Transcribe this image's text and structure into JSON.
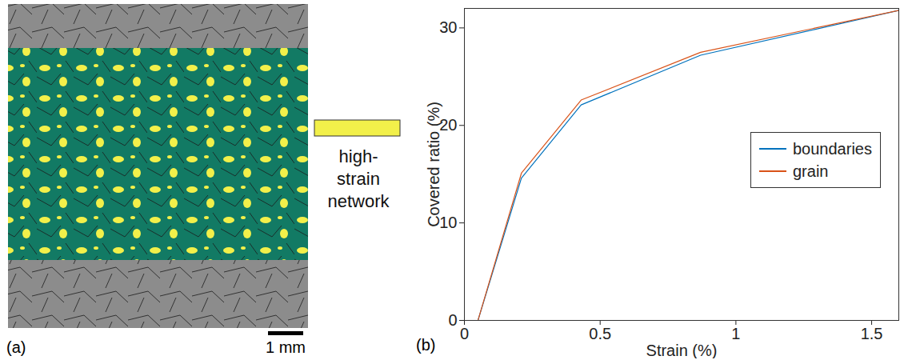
{
  "panel_a": {
    "panel_label": "(a)",
    "legend_label": "high-strain network",
    "scale_bar": "1 mm"
  },
  "chart_data": {
    "type": "line",
    "panel_label": "(b)",
    "x_label": "Strain (%)",
    "y_label": "Covered ratio (%)",
    "series": [
      {
        "name": "boundaries",
        "color": "#0072bd",
        "x": [
          0.05,
          0.21,
          0.43,
          0.87,
          1.6
        ],
        "values": [
          0,
          14.6,
          22.1,
          27.2,
          31.8
        ]
      },
      {
        "name": "grain",
        "color": "#d95319",
        "x": [
          0.05,
          0.21,
          0.43,
          0.87,
          1.6
        ],
        "values": [
          0,
          15.1,
          22.6,
          27.5,
          31.8
        ]
      }
    ],
    "xlim": [
      0,
      1.6
    ],
    "xticks": [
      0,
      0.5,
      1,
      1.5
    ],
    "ylim": [
      0,
      32
    ],
    "yticks": [
      0,
      10,
      20,
      30
    ],
    "grid": false,
    "legend": "right"
  }
}
